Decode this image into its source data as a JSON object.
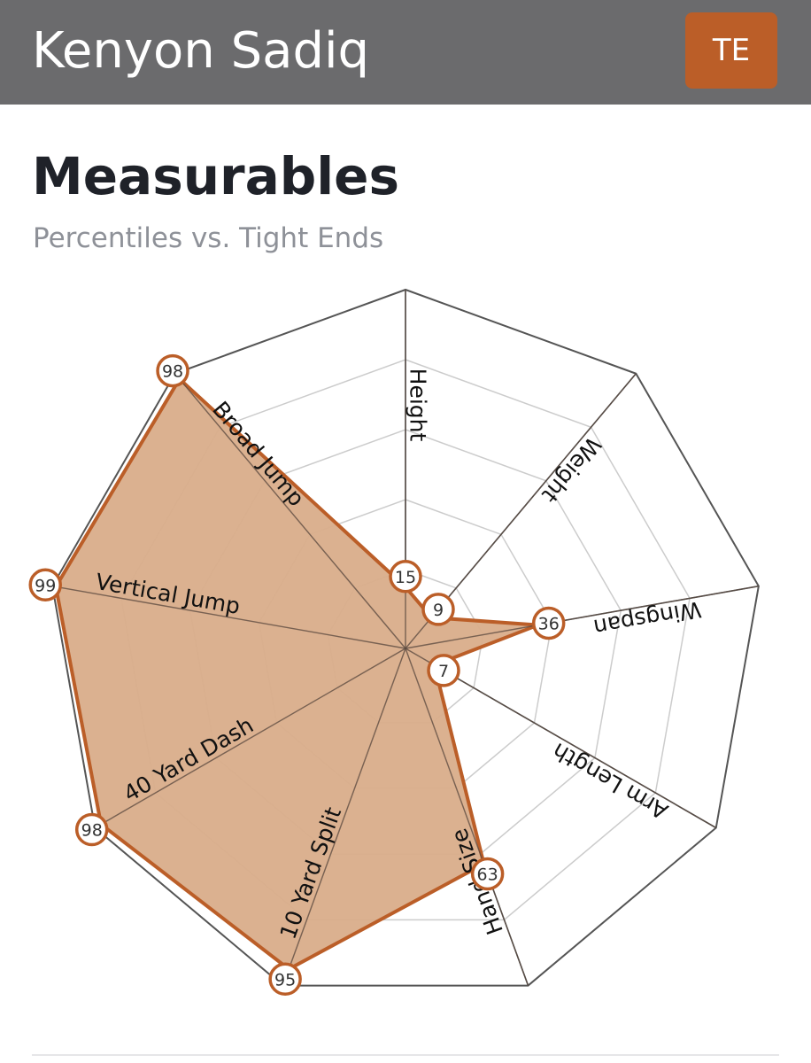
{
  "header": {
    "player_name": "Kenyon Sadiq",
    "position_badge": "TE",
    "background_color": "#6b6b6d",
    "badge_color": "#bb5e28"
  },
  "section": {
    "title": "Measurables",
    "subtitle": "Percentiles vs. Tight Ends"
  },
  "chart_data": {
    "type": "radar",
    "max": 100,
    "rings": [
      20,
      40,
      60,
      80
    ],
    "axes": [
      "Height",
      "Weight",
      "Wingspan",
      "Arm Length",
      "Hand Size",
      "10 Yard Split",
      "40 Yard Dash",
      "Vertical Jump",
      "Broad Jump"
    ],
    "values": [
      15,
      9,
      36,
      7,
      63,
      95,
      98,
      99,
      98
    ],
    "fill_color": "#d9ad8a",
    "stroke_color": "#bb5e28",
    "grid_color": "#cccccc",
    "outline_color": "#555555"
  }
}
